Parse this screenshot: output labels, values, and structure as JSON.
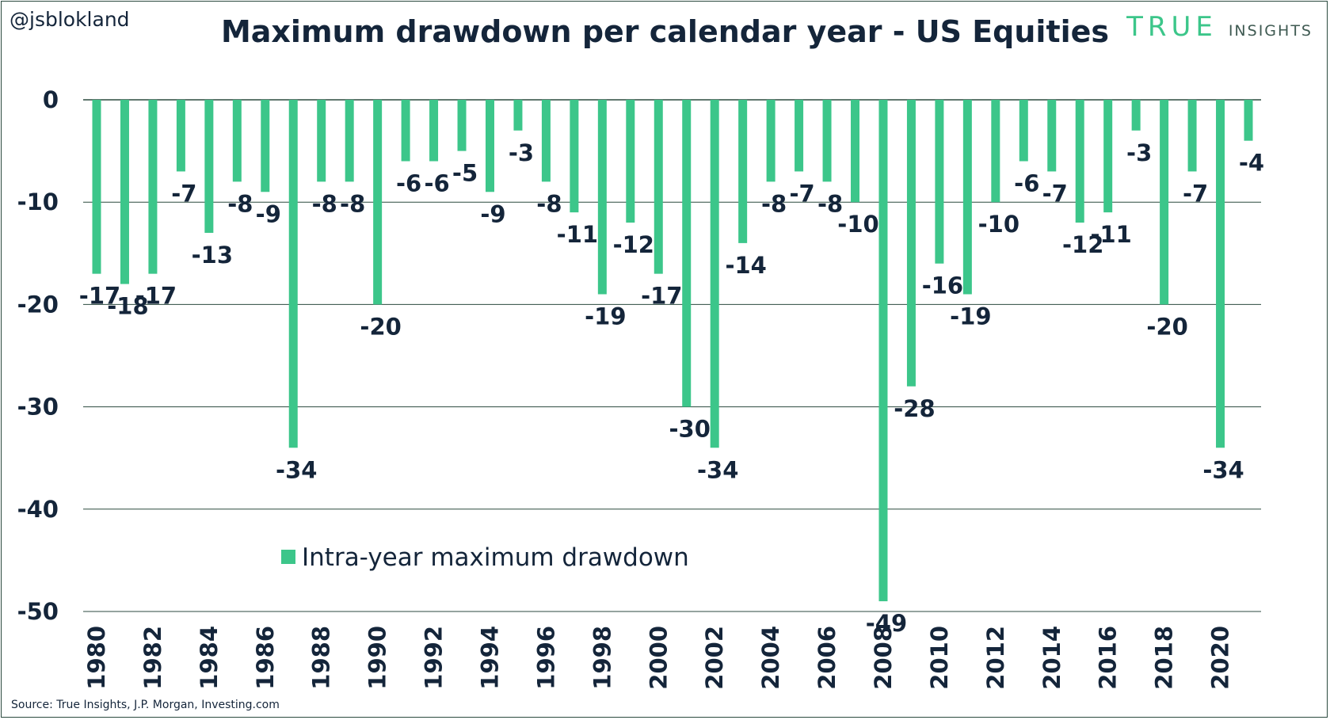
{
  "header": {
    "handle": "@jsblokland",
    "title": "Maximum drawdown per calendar year - US Equities",
    "logo_main": "TRUE",
    "logo_sub": "INSIGHTS"
  },
  "footer": {
    "source": "Source: True Insights, J.P. Morgan, Investing.com"
  },
  "colors": {
    "bar": "#3cc68a",
    "text": "#14253a",
    "grid": "#2b4a3f",
    "logo": "#3cc68a"
  },
  "chart_data": {
    "type": "bar",
    "title": "Maximum drawdown per calendar year - US Equities",
    "xlabel": "",
    "ylabel": "",
    "ylim": [
      -50,
      0
    ],
    "yticks": [
      0,
      -10,
      -20,
      -30,
      -40,
      -50
    ],
    "grid": true,
    "legend_position": "bottom-center",
    "categories": [
      1980,
      1981,
      1982,
      1983,
      1984,
      1985,
      1986,
      1987,
      1988,
      1989,
      1990,
      1991,
      1992,
      1993,
      1994,
      1995,
      1996,
      1997,
      1998,
      1999,
      2000,
      2001,
      2002,
      2003,
      2004,
      2005,
      2006,
      2007,
      2008,
      2009,
      2010,
      2011,
      2012,
      2013,
      2014,
      2015,
      2016,
      2017,
      2018,
      2019,
      2020,
      2021
    ],
    "xtick_labels": [
      "1980",
      "1982",
      "1984",
      "1986",
      "1988",
      "1990",
      "1992",
      "1994",
      "1996",
      "1998",
      "2000",
      "2002",
      "2004",
      "2006",
      "2008",
      "2010",
      "2012",
      "2014",
      "2016",
      "2018",
      "2020"
    ],
    "series": [
      {
        "name": "Intra-year maximum drawdown",
        "values": [
          -17,
          -18,
          -17,
          -7,
          -13,
          -8,
          -9,
          -34,
          -8,
          -8,
          -20,
          -6,
          -6,
          -5,
          -9,
          -3,
          -8,
          -11,
          -19,
          -12,
          -17,
          -30,
          -34,
          -14,
          -8,
          -7,
          -8,
          -10,
          -49,
          -28,
          -16,
          -19,
          -10,
          -6,
          -7,
          -12,
          -11,
          -3,
          -20,
          -7,
          -34,
          -4
        ]
      }
    ]
  }
}
